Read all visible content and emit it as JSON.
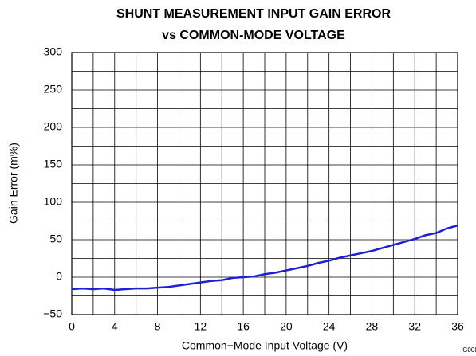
{
  "chart_data": {
    "type": "line",
    "title": [
      "SHUNT MEASUREMENT INPUT GAIN ERROR",
      "vs COMMON-MODE VOLTAGE"
    ],
    "x_label": "Common−Mode Input Voltage (V)",
    "y_label": "Gain Error (m%)",
    "annotation": "G008",
    "x": [
      0,
      1,
      2,
      3,
      4,
      5,
      6,
      7,
      8,
      9,
      10,
      11,
      12,
      13,
      14,
      15,
      16,
      17,
      18,
      19,
      20,
      21,
      22,
      23,
      24,
      25,
      26,
      27,
      28,
      29,
      30,
      31,
      32,
      33,
      34,
      35,
      36
    ],
    "series": [
      {
        "name": "Gain Error",
        "color": "#1f1fd6",
        "values": [
          -16,
          -15,
          -16,
          -15,
          -17,
          -16,
          -15,
          -15,
          -14,
          -13,
          -11,
          -9,
          -7,
          -5,
          -4,
          -1,
          0,
          1,
          4,
          6,
          9,
          12,
          15,
          19,
          22,
          26,
          29,
          32,
          35,
          39,
          43,
          47,
          51,
          56,
          59,
          65,
          69
        ]
      }
    ],
    "xlim": [
      0,
      36
    ],
    "xticks": [
      0,
      4,
      8,
      12,
      16,
      20,
      24,
      28,
      32,
      36
    ],
    "xminor": [
      2,
      6,
      10,
      14,
      18,
      22,
      26,
      30,
      34
    ],
    "ylim": [
      -50,
      300
    ],
    "yticks": [
      {
        "value": -50,
        "label": "−50"
      },
      0,
      50,
      100,
      150,
      200,
      250,
      300
    ],
    "yminor": [
      -25,
      25,
      75,
      125,
      175,
      225,
      275
    ],
    "grid": true
  }
}
